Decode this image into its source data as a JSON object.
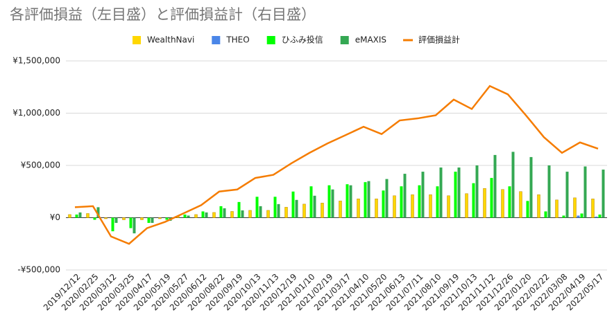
{
  "chart_data": {
    "type": "bar",
    "title": "各評価損益（左目盛）と評価損益計（右目盛）",
    "categories": [
      "2019/12/12",
      "2020/02/25",
      "2020/03/12",
      "2020/03/25",
      "2020/04/17",
      "2020/05/19",
      "2020/05/27",
      "2020/06/12",
      "2020/08/22",
      "2020/09/19",
      "2020/10/13",
      "2020/11/13",
      "2020/12/19",
      "2021/01/10",
      "2021/02/19",
      "2021/03/17",
      "2021/04/10",
      "2021/05/20",
      "2021/06/13",
      "2021/07/11",
      "2021/08/10",
      "2021/09/19",
      "2021/10/13",
      "2021/11/12",
      "2021/12/26",
      "2022/01/20",
      "2022/02/22",
      "2022/03/08",
      "2022/04/19",
      "2022/05/17"
    ],
    "series": [
      {
        "name": "WealthNavi",
        "type": "bar",
        "color": "#ffd700",
        "values": [
          30000,
          40000,
          -10000,
          -20000,
          -20000,
          -10000,
          10000,
          30000,
          50000,
          60000,
          70000,
          70000,
          100000,
          130000,
          140000,
          160000,
          180000,
          180000,
          210000,
          220000,
          220000,
          210000,
          230000,
          280000,
          270000,
          250000,
          220000,
          170000,
          190000,
          180000
        ]
      },
      {
        "name": "THEO",
        "type": "bar",
        "color": "#4a86e8",
        "values": [
          0,
          0,
          0,
          0,
          0,
          0,
          0,
          0,
          0,
          0,
          0,
          0,
          0,
          0,
          0,
          0,
          0,
          0,
          0,
          0,
          0,
          0,
          0,
          0,
          0,
          0,
          0,
          0,
          20000,
          10000
        ]
      },
      {
        "name": "ひふみ投信",
        "type": "bar",
        "color": "#00ff00",
        "values": [
          30000,
          -20000,
          -130000,
          -100000,
          -50000,
          -20000,
          30000,
          60000,
          110000,
          150000,
          200000,
          200000,
          250000,
          300000,
          310000,
          320000,
          340000,
          260000,
          300000,
          310000,
          300000,
          440000,
          330000,
          380000,
          300000,
          160000,
          60000,
          20000,
          40000,
          30000
        ]
      },
      {
        "name": "eMAXIS",
        "type": "bar",
        "color": "#34a853",
        "values": [
          50000,
          100000,
          -50000,
          -150000,
          -50000,
          -30000,
          20000,
          50000,
          90000,
          70000,
          110000,
          130000,
          170000,
          210000,
          270000,
          310000,
          350000,
          370000,
          420000,
          440000,
          480000,
          480000,
          500000,
          600000,
          630000,
          580000,
          500000,
          440000,
          490000,
          460000
        ]
      },
      {
        "name": "評価損益計",
        "type": "line",
        "color": "#f57c00",
        "values": [
          100000,
          110000,
          -180000,
          -250000,
          -100000,
          -40000,
          40000,
          120000,
          250000,
          270000,
          380000,
          410000,
          520000,
          620000,
          710000,
          790000,
          870000,
          800000,
          930000,
          950000,
          980000,
          1130000,
          1040000,
          1260000,
          1180000,
          980000,
          770000,
          620000,
          720000,
          660000
        ]
      }
    ],
    "ylim": [
      -500000,
      1500000
    ],
    "yticks": [
      {
        "value": -500000,
        "label": "-¥500,000"
      },
      {
        "value": 0,
        "label": "¥0"
      },
      {
        "value": 500000,
        "label": "¥500,000"
      },
      {
        "value": 1000000,
        "label": "¥1,000,000"
      },
      {
        "value": 1500000,
        "label": "¥1,500,000"
      }
    ],
    "grid": true,
    "legend": "top"
  }
}
